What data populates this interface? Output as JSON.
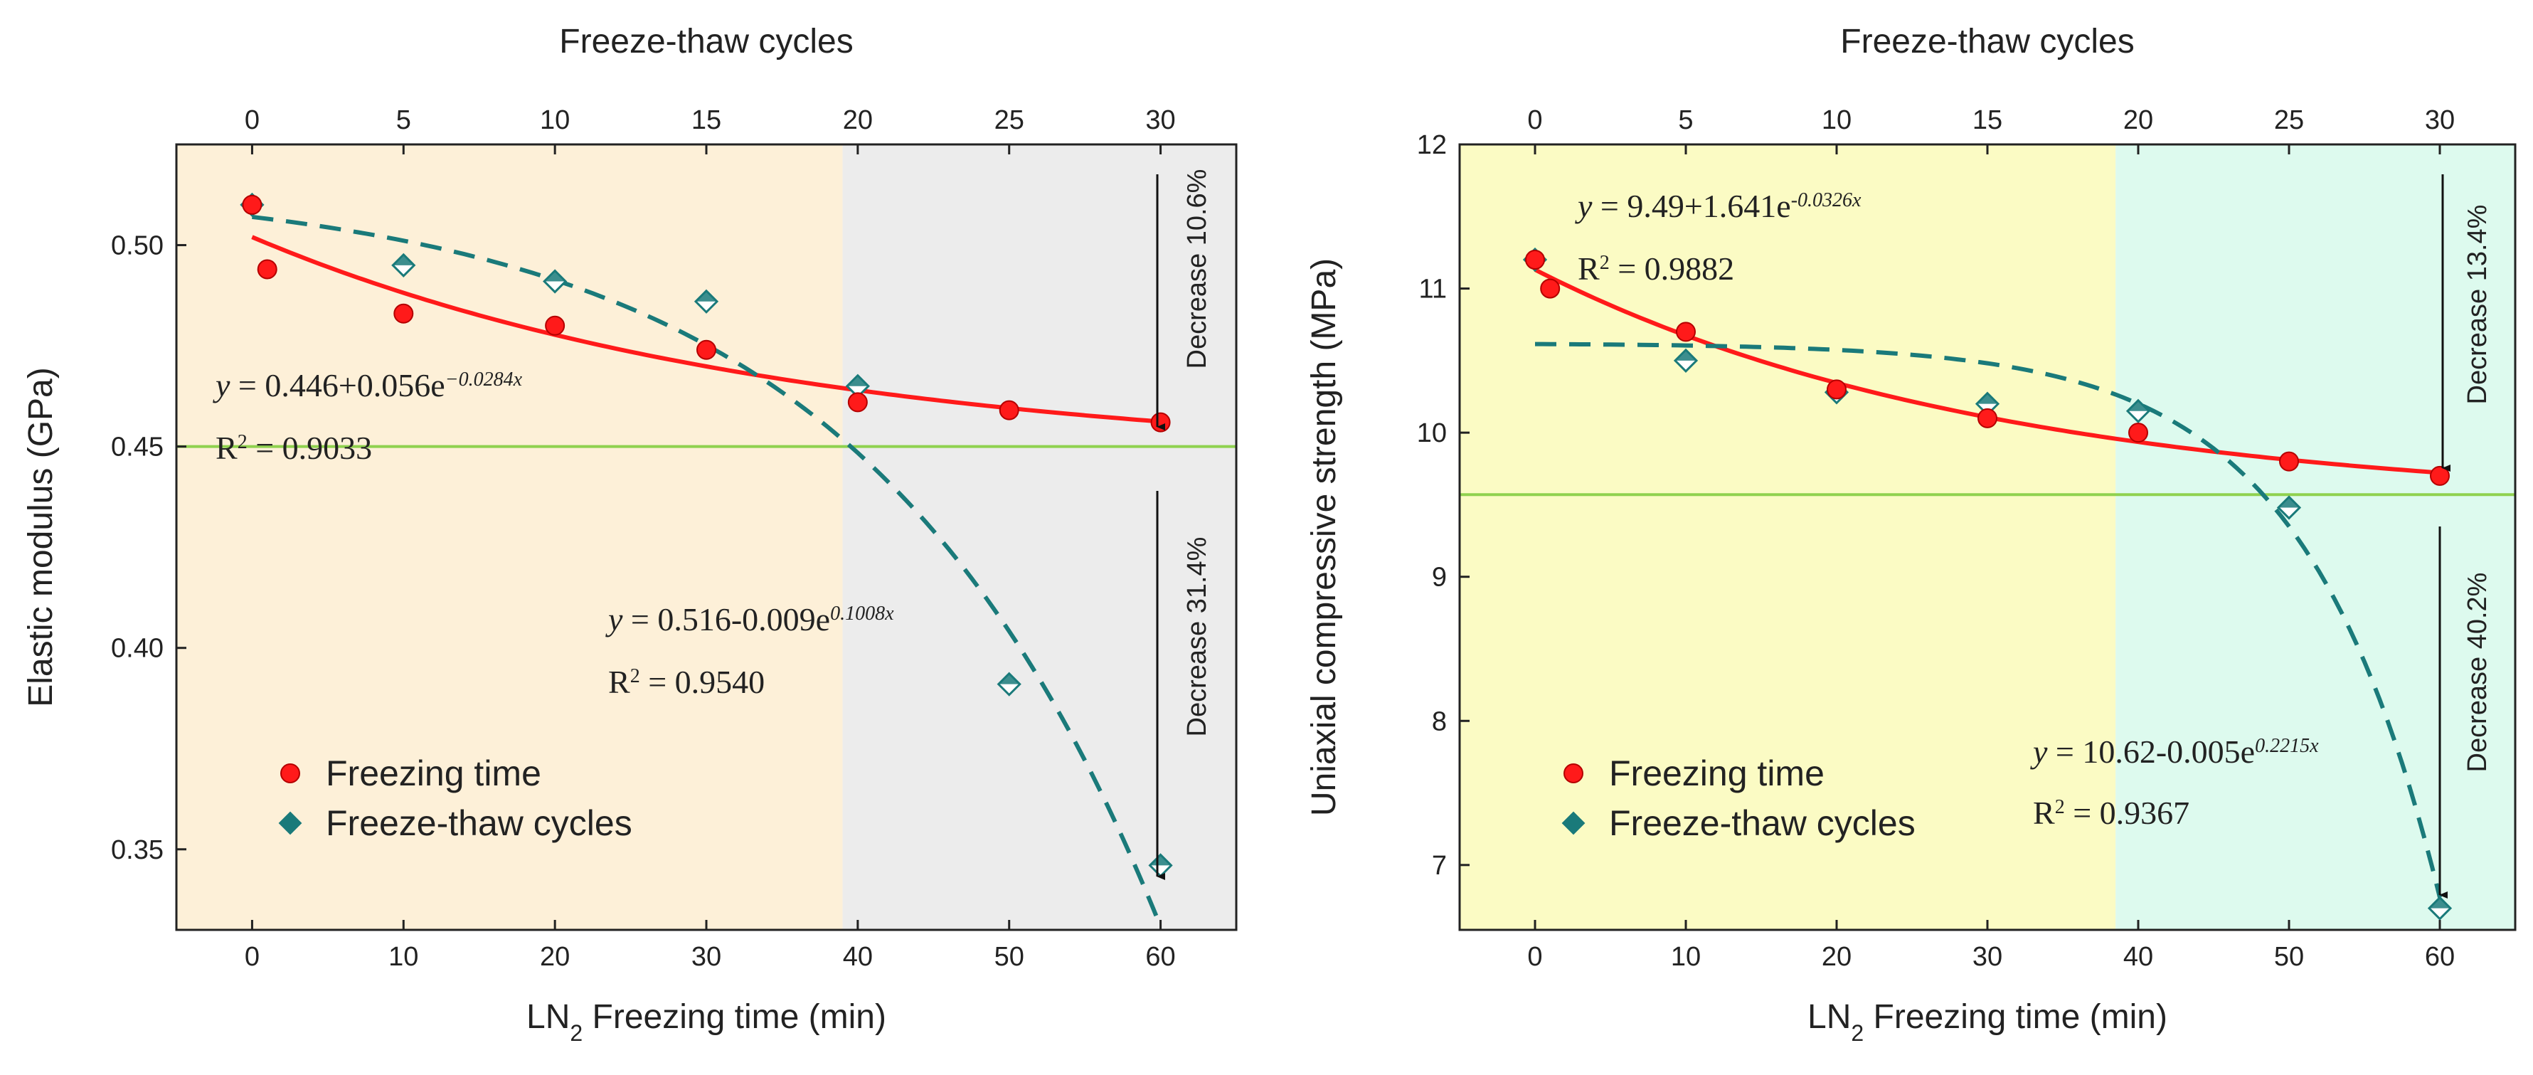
{
  "colors": {
    "freezing": "#ff1a1a",
    "freeze_thaw": "#1a7a7a",
    "threshold": "#8fd14f",
    "left_bg1": "#fdf0d8",
    "left_bg2": "#ececec",
    "right_bg1": "#fbfbc4",
    "right_bg2": "#ddfaee"
  },
  "chart_data": [
    {
      "type": "scatter",
      "xlabel_main": "LN",
      "xlabel_sub": "2",
      "xlabel_rest": " Freezing time (min)",
      "x2label": "Freeze-thaw cycles",
      "ylabel": "Elastic modulus (GPa)",
      "xlim": [
        -5,
        65
      ],
      "ylim": [
        0.33,
        0.525
      ],
      "x2lim": [
        -2.5,
        32.5
      ],
      "xticks": [
        0,
        10,
        20,
        30,
        40,
        50,
        60
      ],
      "x2ticks": [
        0,
        5,
        10,
        15,
        20,
        25,
        30
      ],
      "yticks": [
        0.35,
        0.4,
        0.45,
        0.5
      ],
      "ytick_labels": [
        "0.35",
        "0.40",
        "0.45",
        "0.50"
      ],
      "shade_split_x": 39,
      "threshold_y": 0.45,
      "series": [
        {
          "name": "Freezing time",
          "marker": "circle",
          "x": [
            0,
            1,
            10,
            20,
            30,
            40,
            50,
            60
          ],
          "y": [
            0.51,
            0.494,
            0.483,
            0.48,
            0.474,
            0.461,
            0.459,
            0.456
          ],
          "fit": {
            "a": 0.446,
            "b": 0.056,
            "c": -0.0284,
            "axis": "x"
          }
        },
        {
          "name": "Freeze-thaw cycles",
          "marker": "diamond",
          "x": [
            0,
            5,
            10,
            15,
            20,
            25,
            30
          ],
          "y": [
            0.51,
            0.495,
            0.491,
            0.486,
            0.465,
            0.391,
            0.346
          ],
          "fit": {
            "a": 0.516,
            "b": -0.009,
            "c": 0.1008,
            "axis": "x"
          }
        }
      ],
      "equations": [
        {
          "lhs": "y",
          "main": " = 0.446+0.056e",
          "sup": "−0.0284x"
        },
        {
          "r2_label": "R",
          "r2_sup": "2",
          "r2_value": " = 0.9033"
        },
        {
          "lhs": "y",
          "main": " = 0.516-0.009e",
          "sup": "0.1008x"
        },
        {
          "r2_label": "R",
          "r2_sup": "2",
          "r2_value": " = 0.9540"
        }
      ],
      "annotations": [
        "Decrease 10.6%",
        "Decrease 31.4%"
      ],
      "legend": [
        "Freezing time",
        "Freeze-thaw cycles"
      ]
    },
    {
      "type": "scatter",
      "xlabel_main": "LN",
      "xlabel_sub": "2",
      "xlabel_rest": " Freezing time (min)",
      "x2label": "Freeze-thaw cycles",
      "ylabel": "Uniaxial compressive strength (MPa)",
      "xlim": [
        -5,
        65
      ],
      "ylim": [
        6.55,
        12
      ],
      "x2lim": [
        -2.5,
        32.5
      ],
      "xticks": [
        0,
        10,
        20,
        30,
        40,
        50,
        60
      ],
      "x2ticks": [
        0,
        5,
        10,
        15,
        20,
        25,
        30
      ],
      "yticks": [
        7,
        8,
        9,
        10,
        11,
        12
      ],
      "ytick_labels": [
        "7",
        "8",
        "9",
        "10",
        "11",
        "12"
      ],
      "shade_split_x": 38.5,
      "threshold_y": 9.57,
      "series": [
        {
          "name": "Freezing time",
          "marker": "circle",
          "x": [
            0,
            1,
            10,
            20,
            30,
            40,
            50,
            60
          ],
          "y": [
            11.2,
            11.0,
            10.7,
            10.3,
            10.1,
            10.0,
            9.8,
            9.7
          ],
          "fit": {
            "a": 9.49,
            "b": 1.641,
            "c": -0.0326,
            "axis": "x"
          }
        },
        {
          "name": "Freeze-thaw cycles",
          "marker": "diamond",
          "x": [
            0,
            5,
            10,
            15,
            20,
            25,
            30
          ],
          "y": [
            11.2,
            10.5,
            10.28,
            10.2,
            10.15,
            9.48,
            6.7
          ],
          "fit": {
            "a": 10.62,
            "b": -0.005,
            "c": 0.2215,
            "axis": "x"
          }
        }
      ],
      "equations": [
        {
          "lhs": "y",
          "main": " = 9.49+1.641e",
          "sup": "-0.0326x"
        },
        {
          "r2_label": "R",
          "r2_sup": "2",
          "r2_value": " = 0.9882"
        },
        {
          "lhs": "y",
          "main": " = 10.62-0.005e",
          "sup": "0.2215x"
        },
        {
          "r2_label": "R",
          "r2_sup": "2",
          "r2_value": " = 0.9367"
        }
      ],
      "annotations": [
        "Decrease 13.4%",
        "Decrease 40.2%"
      ],
      "legend": [
        "Freezing time",
        "Freeze-thaw cycles"
      ]
    }
  ]
}
